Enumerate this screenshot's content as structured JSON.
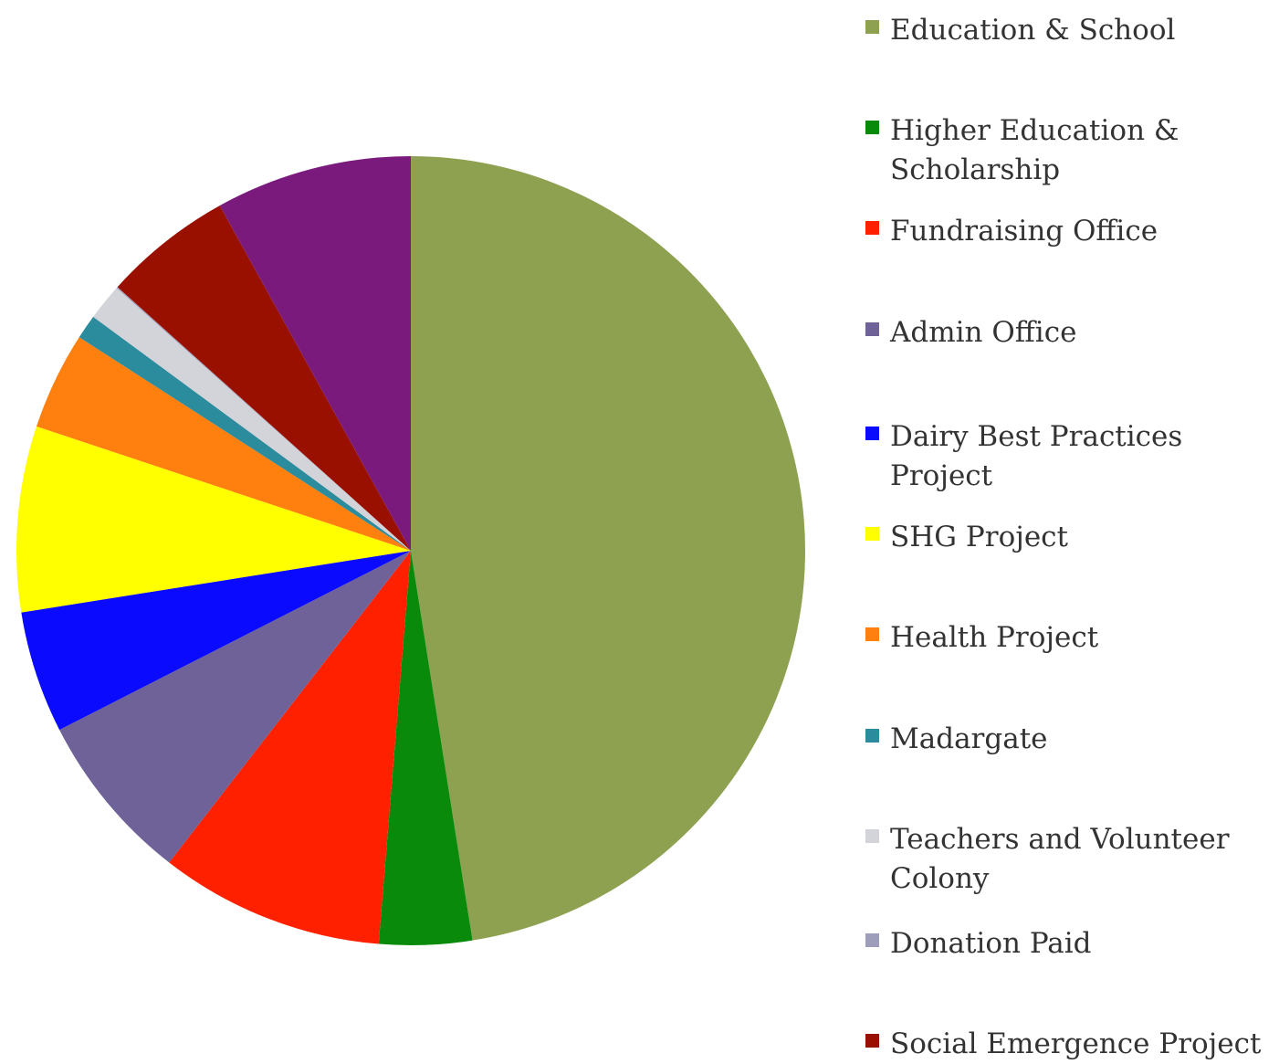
{
  "chart_data": {
    "type": "pie",
    "title": "",
    "legend_position": "right",
    "slices": [
      {
        "label": "Education & School",
        "value": 47.5,
        "color": "#8da150"
      },
      {
        "label": "Higher Education & Scholarship",
        "value": 3.8,
        "color": "#0a8a0a"
      },
      {
        "label": "Fundraising Office",
        "value": 9.2,
        "color": "#ff2000"
      },
      {
        "label": "Admin Office",
        "value": 7.0,
        "color": "#6e6298"
      },
      {
        "label": "Dairy Best Practices Project",
        "value": 5.0,
        "color": "#0a0aff"
      },
      {
        "label": "SHG Project",
        "value": 7.6,
        "color": "#ffff00"
      },
      {
        "label": "Health Project",
        "value": 4.0,
        "color": "#ff7f0f"
      },
      {
        "label": "Madargate",
        "value": 1.0,
        "color": "#2a8c9c"
      },
      {
        "label": "Teachers and Volunteer Colony",
        "value": 1.5,
        "color": "#d3d3da"
      },
      {
        "label": "Donation Paid",
        "value": 0.05,
        "color": "#9e9eba"
      },
      {
        "label": "Social Emergence Project",
        "value": 5.3,
        "color": "#990f00"
      },
      {
        "label": "",
        "value": 8.05,
        "color": "#7a1a7c"
      }
    ]
  },
  "legend": {
    "items": [
      {
        "lines": [
          "Education & School"
        ],
        "color": "#8da150"
      },
      {
        "lines": [
          "Higher Education &",
          "Scholarship"
        ],
        "color": "#0a8a0a"
      },
      {
        "lines": [
          "Fundraising Office"
        ],
        "color": "#ff2000"
      },
      {
        "lines": [
          "Admin Office"
        ],
        "color": "#6e6298"
      },
      {
        "lines": [
          "Dairy Best Practices Project"
        ],
        "color": "#0a0aff"
      },
      {
        "lines": [
          "SHG Project"
        ],
        "color": "#ffff00"
      },
      {
        "lines": [
          "Health Project"
        ],
        "color": "#ff7f0f"
      },
      {
        "lines": [
          "Madargate"
        ],
        "color": "#2a8c9c"
      },
      {
        "lines": [
          "Teachers and Volunteer",
          "Colony"
        ],
        "color": "#d3d3da"
      },
      {
        "lines": [
          "Donation Paid"
        ],
        "color": "#9e9eba"
      },
      {
        "lines": [
          "Social Emergence Project"
        ],
        "color": "#990f00"
      }
    ]
  }
}
